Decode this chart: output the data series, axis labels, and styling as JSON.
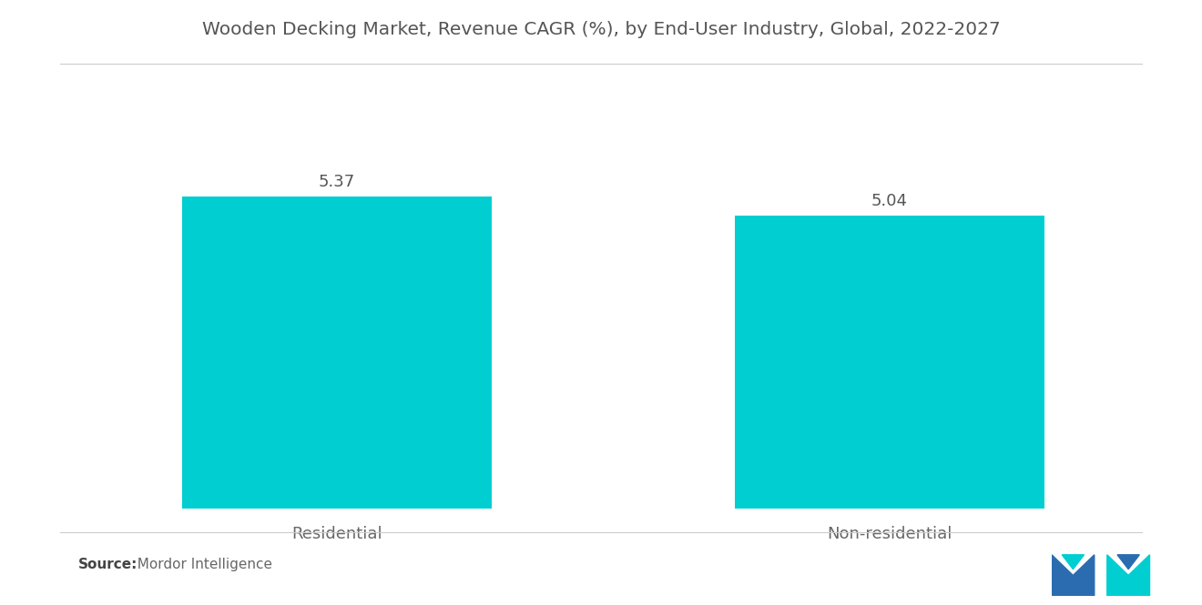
{
  "title": "Wooden Decking Market, Revenue CAGR (%), by End-User Industry, Global, 2022-2027",
  "categories": [
    "Residential",
    "Non-residential"
  ],
  "values": [
    5.37,
    5.04
  ],
  "bar_color": "#00CED1",
  "value_labels": [
    "5.37",
    "5.04"
  ],
  "ylim": [
    0,
    7.5
  ],
  "source_label": "Source:",
  "source_text": "  Mordor Intelligence",
  "title_fontsize": 14.5,
  "label_fontsize": 13,
  "value_fontsize": 13,
  "source_fontsize": 11,
  "background_color": "#ffffff",
  "bar_width": 0.28,
  "x_positions": [
    0.25,
    0.75
  ],
  "xlim": [
    0.0,
    1.0
  ],
  "logo_blue": "#2B6CB0",
  "logo_teal": "#00CED1"
}
